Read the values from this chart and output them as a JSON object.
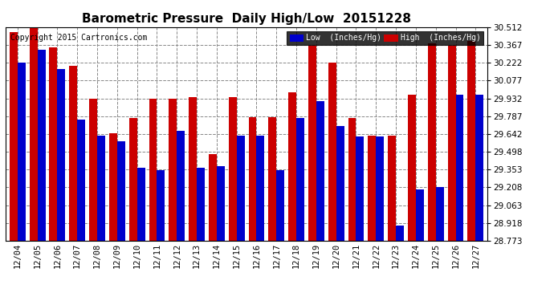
{
  "title": "Barometric Pressure  Daily High/Low  20151228",
  "copyright": "Copyright 2015 Cartronics.com",
  "dates": [
    "12/04",
    "12/05",
    "12/06",
    "12/07",
    "12/08",
    "12/09",
    "12/10",
    "12/11",
    "12/12",
    "12/13",
    "12/14",
    "12/15",
    "12/16",
    "12/17",
    "12/18",
    "12/19",
    "12/20",
    "12/21",
    "12/22",
    "12/23",
    "12/24",
    "12/25",
    "12/26",
    "12/27"
  ],
  "low_values": [
    30.22,
    30.33,
    30.17,
    29.76,
    29.63,
    29.58,
    29.37,
    29.35,
    29.67,
    29.37,
    29.38,
    29.63,
    29.63,
    29.35,
    29.77,
    29.91,
    29.71,
    29.62,
    29.62,
    28.9,
    29.19,
    29.21,
    29.96,
    29.96
  ],
  "high_values": [
    30.47,
    30.52,
    30.35,
    30.2,
    29.93,
    29.65,
    29.77,
    29.93,
    29.93,
    29.94,
    29.48,
    29.94,
    29.78,
    29.78,
    29.98,
    30.36,
    30.22,
    29.77,
    29.63,
    29.63,
    29.96,
    30.38,
    30.36,
    30.4
  ],
  "ylim_min": 28.773,
  "ylim_max": 30.512,
  "yticks": [
    28.773,
    28.918,
    29.063,
    29.208,
    29.353,
    29.498,
    29.642,
    29.787,
    29.932,
    30.077,
    30.222,
    30.367,
    30.512
  ],
  "bar_color_low": "#0000cc",
  "bar_color_high": "#cc0000",
  "bg_color": "#ffffff",
  "grid_color": "#888888",
  "title_fontsize": 11,
  "copyright_fontsize": 7,
  "tick_fontsize": 7.5
}
